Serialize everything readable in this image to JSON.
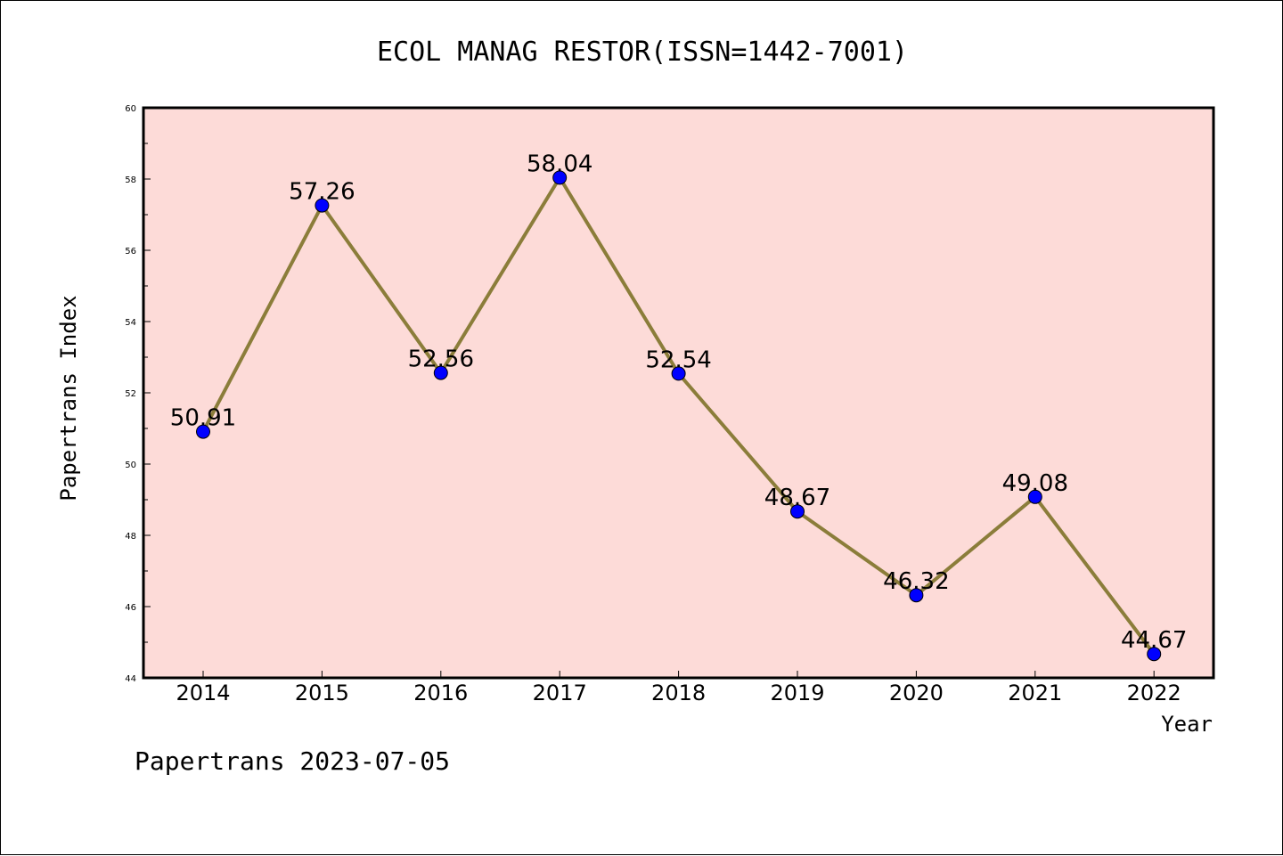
{
  "chart_data": {
    "type": "line",
    "title": "ECOL MANAG RESTOR(ISSN=1442-7001)",
    "xlabel": "Year",
    "ylabel": "Papertrans Index",
    "categories": [
      "2014",
      "2015",
      "2016",
      "2017",
      "2018",
      "2019",
      "2020",
      "2021",
      "2022"
    ],
    "values": [
      50.91,
      57.26,
      52.56,
      58.04,
      52.54,
      48.67,
      46.32,
      49.08,
      44.67
    ],
    "data_labels": [
      "50.91",
      "57.26",
      "52.56",
      "58.04",
      "52.54",
      "48.67",
      "46.32",
      "49.08",
      "44.67"
    ],
    "ylim": [
      44,
      60
    ],
    "yticks": [
      "44",
      "46",
      "48",
      "50",
      "52",
      "54",
      "56",
      "58",
      "60"
    ],
    "grid": false,
    "colors": {
      "plot_background": "#fddbd8",
      "line": "#8b7d3a",
      "marker": "#0000ff"
    }
  },
  "footer": {
    "text": "Papertrans 2023-07-05"
  }
}
